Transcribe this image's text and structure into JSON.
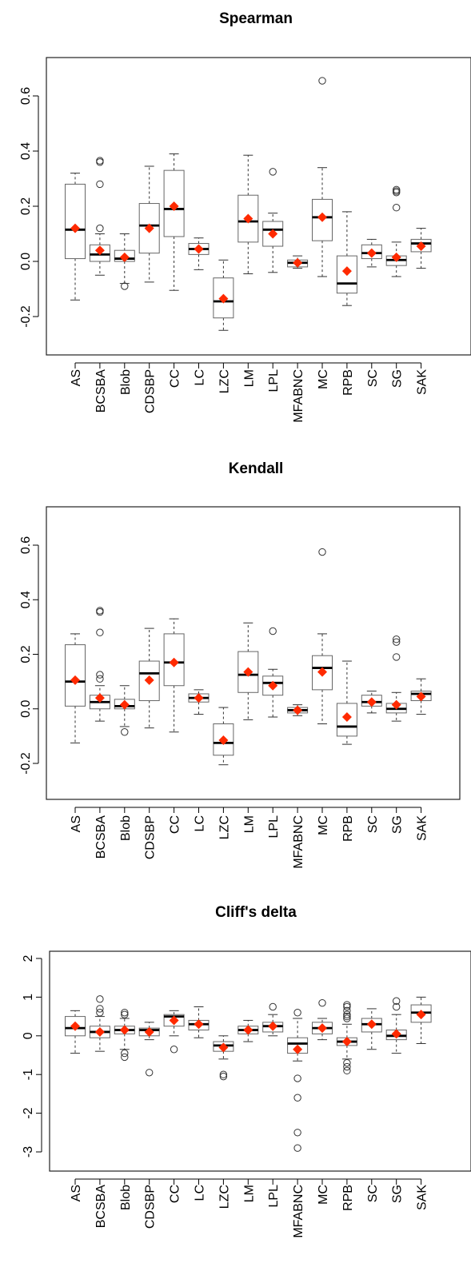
{
  "chart_data": [
    {
      "type": "boxplot",
      "title": "Spearman",
      "ylim": [
        -0.34,
        0.74
      ],
      "yticks": [
        -0.2,
        0.0,
        0.2,
        0.4,
        0.6
      ],
      "ytick_labels": [
        "-0.2",
        "0.0",
        "0.2",
        "0.4",
        "0.6"
      ],
      "categories": [
        "AS",
        "BCSBA",
        "Blob",
        "CDSBP",
        "CC",
        "LC",
        "LZC",
        "LM",
        "LPL",
        "MFABNC",
        "MC",
        "RPB",
        "SC",
        "SG",
        "SAK"
      ],
      "boxes": [
        {
          "min": -0.14,
          "q1": 0.01,
          "median": 0.115,
          "q3": 0.28,
          "max": 0.32,
          "mean": 0.12,
          "outliers": []
        },
        {
          "min": -0.05,
          "q1": 0.0,
          "median": 0.025,
          "q3": 0.06,
          "max": 0.1,
          "mean": 0.04,
          "outliers": [
            0.12,
            0.28,
            0.36,
            0.365
          ]
        },
        {
          "min": -0.08,
          "q1": 0.0,
          "median": 0.01,
          "q3": 0.04,
          "max": 0.1,
          "mean": 0.015,
          "outliers": [
            -0.09
          ]
        },
        {
          "min": -0.075,
          "q1": 0.03,
          "median": 0.13,
          "q3": 0.21,
          "max": 0.345,
          "mean": 0.12,
          "outliers": []
        },
        {
          "min": -0.105,
          "q1": 0.09,
          "median": 0.19,
          "q3": 0.33,
          "max": 0.39,
          "mean": 0.2,
          "outliers": []
        },
        {
          "min": -0.03,
          "q1": 0.025,
          "median": 0.045,
          "q3": 0.065,
          "max": 0.085,
          "mean": 0.045,
          "outliers": []
        },
        {
          "min": -0.25,
          "q1": -0.205,
          "median": -0.145,
          "q3": -0.06,
          "max": 0.005,
          "mean": -0.135,
          "outliers": []
        },
        {
          "min": -0.045,
          "q1": 0.07,
          "median": 0.145,
          "q3": 0.24,
          "max": 0.385,
          "mean": 0.155,
          "outliers": []
        },
        {
          "min": -0.04,
          "q1": 0.055,
          "median": 0.115,
          "q3": 0.145,
          "max": 0.175,
          "mean": 0.1,
          "outliers": [
            0.325
          ]
        },
        {
          "min": -0.025,
          "q1": -0.02,
          "median": -0.005,
          "q3": 0.005,
          "max": 0.02,
          "mean": -0.005,
          "outliers": []
        },
        {
          "min": -0.055,
          "q1": 0.075,
          "median": 0.16,
          "q3": 0.225,
          "max": 0.34,
          "mean": 0.16,
          "outliers": [
            0.655
          ]
        },
        {
          "min": -0.16,
          "q1": -0.115,
          "median": -0.08,
          "q3": 0.02,
          "max": 0.18,
          "mean": -0.035,
          "outliers": []
        },
        {
          "min": -0.02,
          "q1": 0.01,
          "median": 0.03,
          "q3": 0.06,
          "max": 0.08,
          "mean": 0.03,
          "outliers": []
        },
        {
          "min": -0.055,
          "q1": -0.015,
          "median": 0.005,
          "q3": 0.02,
          "max": 0.07,
          "mean": 0.015,
          "outliers": [
            0.195,
            0.25,
            0.255,
            0.26
          ]
        },
        {
          "min": -0.025,
          "q1": 0.035,
          "median": 0.065,
          "q3": 0.08,
          "max": 0.12,
          "mean": 0.055,
          "outliers": []
        }
      ]
    },
    {
      "type": "boxplot",
      "title": "Kendall",
      "ylim": [
        -0.34,
        0.74
      ],
      "yticks": [
        -0.2,
        0.0,
        0.2,
        0.4,
        0.6
      ],
      "ytick_labels": [
        "-0.2",
        "0.0",
        "0.2",
        "0.4",
        "0.6"
      ],
      "categories": [
        "AS",
        "BCSBA",
        "Blob",
        "CDSBP",
        "CC",
        "LC",
        "LZC",
        "LM",
        "LPL",
        "MFABNC",
        "MC",
        "RPB",
        "SC",
        "SG",
        "SAK"
      ],
      "boxes": [
        {
          "min": -0.125,
          "q1": 0.01,
          "median": 0.1,
          "q3": 0.235,
          "max": 0.275,
          "mean": 0.105,
          "outliers": []
        },
        {
          "min": -0.045,
          "q1": 0.0,
          "median": 0.025,
          "q3": 0.05,
          "max": 0.085,
          "mean": 0.04,
          "outliers": [
            0.11,
            0.125,
            0.28,
            0.355,
            0.36
          ]
        },
        {
          "min": -0.065,
          "q1": 0.0,
          "median": 0.01,
          "q3": 0.035,
          "max": 0.085,
          "mean": 0.015,
          "outliers": [
            -0.085
          ]
        },
        {
          "min": -0.07,
          "q1": 0.03,
          "median": 0.13,
          "q3": 0.175,
          "max": 0.295,
          "mean": 0.105,
          "outliers": []
        },
        {
          "min": -0.085,
          "q1": 0.085,
          "median": 0.17,
          "q3": 0.275,
          "max": 0.33,
          "mean": 0.17,
          "outliers": []
        },
        {
          "min": -0.02,
          "q1": 0.025,
          "median": 0.04,
          "q3": 0.055,
          "max": 0.07,
          "mean": 0.04,
          "outliers": []
        },
        {
          "min": -0.205,
          "q1": -0.17,
          "median": -0.125,
          "q3": -0.055,
          "max": 0.005,
          "mean": -0.115,
          "outliers": []
        },
        {
          "min": -0.04,
          "q1": 0.06,
          "median": 0.125,
          "q3": 0.21,
          "max": 0.315,
          "mean": 0.135,
          "outliers": []
        },
        {
          "min": -0.03,
          "q1": 0.05,
          "median": 0.095,
          "q3": 0.12,
          "max": 0.145,
          "mean": 0.085,
          "outliers": [
            0.285
          ]
        },
        {
          "min": -0.025,
          "q1": -0.015,
          "median": -0.005,
          "q3": 0.005,
          "max": 0.015,
          "mean": -0.005,
          "outliers": []
        },
        {
          "min": -0.055,
          "q1": 0.07,
          "median": 0.15,
          "q3": 0.195,
          "max": 0.275,
          "mean": 0.135,
          "outliers": [
            0.575
          ]
        },
        {
          "min": -0.13,
          "q1": -0.1,
          "median": -0.065,
          "q3": 0.02,
          "max": 0.175,
          "mean": -0.03,
          "outliers": []
        },
        {
          "min": -0.015,
          "q1": 0.01,
          "median": 0.025,
          "q3": 0.05,
          "max": 0.065,
          "mean": 0.025,
          "outliers": []
        },
        {
          "min": -0.045,
          "q1": -0.015,
          "median": 0.0,
          "q3": 0.02,
          "max": 0.06,
          "mean": 0.015,
          "outliers": [
            0.19,
            0.245,
            0.255
          ]
        },
        {
          "min": -0.02,
          "q1": 0.03,
          "median": 0.055,
          "q3": 0.065,
          "max": 0.11,
          "mean": 0.045,
          "outliers": []
        }
      ]
    },
    {
      "type": "boxplot",
      "title": "Cliff's delta",
      "ylim": [
        -3.2,
        2.3
      ],
      "yticks": [
        -3,
        -2,
        -1,
        0,
        1,
        2
      ],
      "ytick_labels": [
        "-3",
        "-2",
        "-1",
        "0",
        "1",
        "2"
      ],
      "categories": [
        "AS",
        "BCSBA",
        "Blob",
        "CDSBP",
        "CC",
        "LC",
        "LZC",
        "LM",
        "LPL",
        "MFABNC",
        "MC",
        "RPB",
        "SC",
        "SG",
        "SAK"
      ],
      "boxes": [
        {
          "min": -0.45,
          "q1": 0.0,
          "median": 0.2,
          "q3": 0.5,
          "max": 0.65,
          "mean": 0.25,
          "outliers": []
        },
        {
          "min": -0.4,
          "q1": -0.05,
          "median": 0.1,
          "q3": 0.25,
          "max": 0.5,
          "mean": 0.1,
          "outliers": [
            0.6,
            0.7,
            0.95
          ]
        },
        {
          "min": -0.35,
          "q1": 0.05,
          "median": 0.15,
          "q3": 0.25,
          "max": 0.45,
          "mean": 0.15,
          "outliers": [
            0.55,
            0.6,
            -0.45,
            -0.55
          ]
        },
        {
          "min": -0.1,
          "q1": 0.0,
          "median": 0.15,
          "q3": 0.2,
          "max": 0.35,
          "mean": 0.1,
          "outliers": [
            -0.95
          ]
        },
        {
          "min": 0.0,
          "q1": 0.25,
          "median": 0.5,
          "q3": 0.55,
          "max": 0.65,
          "mean": 0.4,
          "outliers": [
            -0.35
          ]
        },
        {
          "min": -0.05,
          "q1": 0.15,
          "median": 0.3,
          "q3": 0.4,
          "max": 0.75,
          "mean": 0.3,
          "outliers": []
        },
        {
          "min": -0.6,
          "q1": -0.4,
          "median": -0.25,
          "q3": -0.15,
          "max": 0.0,
          "mean": -0.3,
          "outliers": [
            -1.0,
            -1.05
          ]
        },
        {
          "min": -0.15,
          "q1": 0.05,
          "median": 0.15,
          "q3": 0.25,
          "max": 0.4,
          "mean": 0.15,
          "outliers": []
        },
        {
          "min": 0.0,
          "q1": 0.1,
          "median": 0.25,
          "q3": 0.35,
          "max": 0.55,
          "mean": 0.25,
          "outliers": [
            0.75
          ]
        },
        {
          "min": -0.65,
          "q1": -0.45,
          "median": -0.2,
          "q3": -0.05,
          "max": 0.45,
          "mean": -0.35,
          "outliers": [
            0.6,
            -1.1,
            -1.6,
            -2.5,
            -2.9
          ]
        },
        {
          "min": -0.1,
          "q1": 0.05,
          "median": 0.2,
          "q3": 0.35,
          "max": 0.45,
          "mean": 0.2,
          "outliers": [
            0.85
          ]
        },
        {
          "min": -0.6,
          "q1": -0.25,
          "median": -0.15,
          "q3": -0.05,
          "max": 0.3,
          "mean": -0.15,
          "outliers": [
            0.45,
            0.5,
            0.55,
            0.65,
            0.75,
            0.8,
            -0.7,
            -0.8,
            -0.9
          ]
        },
        {
          "min": -0.35,
          "q1": 0.1,
          "median": 0.3,
          "q3": 0.45,
          "max": 0.7,
          "mean": 0.3,
          "outliers": []
        },
        {
          "min": -0.45,
          "q1": -0.1,
          "median": 0.0,
          "q3": 0.15,
          "max": 0.55,
          "mean": 0.05,
          "outliers": [
            0.75,
            0.9
          ]
        },
        {
          "min": -0.2,
          "q1": 0.35,
          "median": 0.6,
          "q3": 0.8,
          "max": 1.0,
          "mean": 0.55,
          "outliers": []
        }
      ]
    }
  ],
  "colors": {
    "mean_marker": "#ff2a00",
    "box": "#666666",
    "axis": "#000000",
    "panel_border": "#222222"
  }
}
